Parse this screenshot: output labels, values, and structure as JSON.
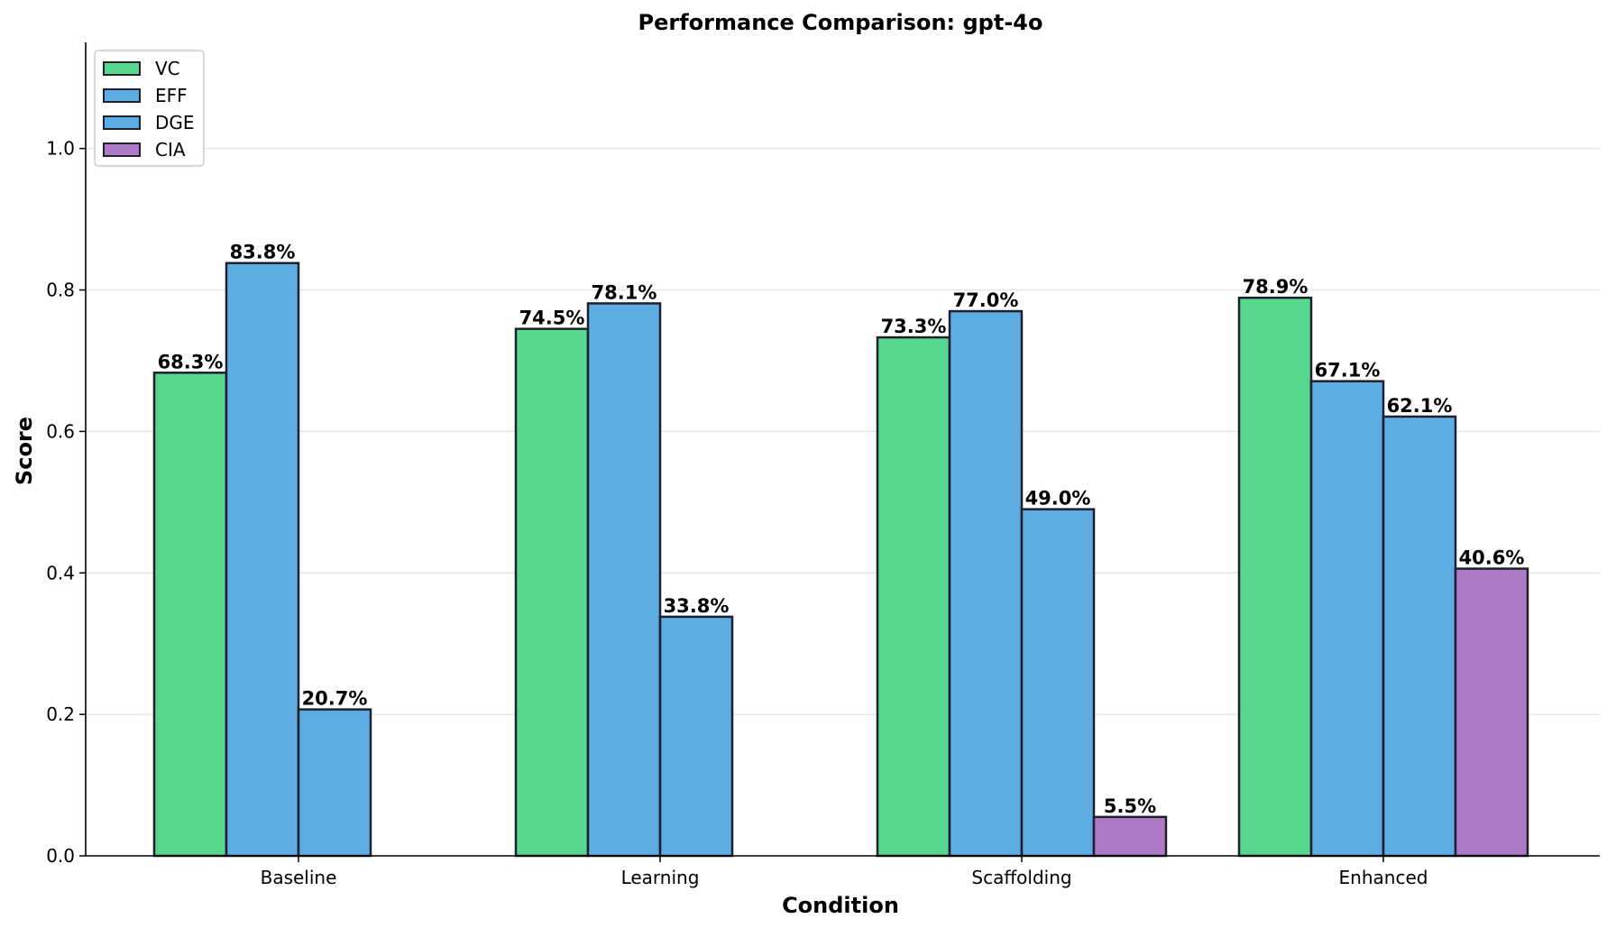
{
  "chart_data": {
    "type": "bar",
    "title": "Performance Comparison: gpt-4o",
    "xlabel": "Condition",
    "ylabel": "Score",
    "ylim": [
      0,
      1.15
    ],
    "yticks": [
      "0.0",
      "0.2",
      "0.4",
      "0.6",
      "0.8",
      "1.0"
    ],
    "grid": "horizontal",
    "legend_position": "top-left",
    "categories": [
      "Baseline",
      "Learning",
      "Scaffolding",
      "Enhanced"
    ],
    "series": [
      {
        "name": "VC",
        "color": "#57d68d",
        "values": [
          0.683,
          0.745,
          0.733,
          0.789
        ],
        "labels": [
          "68.3%",
          "74.5%",
          "73.3%",
          "78.9%"
        ]
      },
      {
        "name": "EFF",
        "color": "#5dade2",
        "values": [
          0.838,
          0.781,
          0.77,
          0.671
        ],
        "labels": [
          "83.8%",
          "78.1%",
          "77.0%",
          "67.1%"
        ]
      },
      {
        "name": "DGE",
        "color": "#5dade2",
        "values": [
          0.207,
          0.338,
          0.49,
          0.621
        ],
        "labels": [
          "20.7%",
          "33.8%",
          "49.0%",
          "62.1%"
        ]
      },
      {
        "name": "CIA",
        "color": "#af7ac5",
        "values": [
          null,
          null,
          0.055,
          0.406
        ],
        "labels": [
          "",
          "",
          "5.5%",
          "40.6%"
        ]
      }
    ]
  }
}
